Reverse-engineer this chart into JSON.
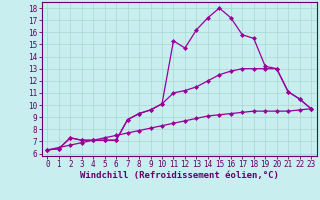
{
  "xlabel": "Windchill (Refroidissement éolien,°C)",
  "bg_color": "#c8eef0",
  "line_color": "#990099",
  "xlim": [
    -0.5,
    23.5
  ],
  "ylim": [
    5.8,
    18.5
  ],
  "xticks": [
    0,
    1,
    2,
    3,
    4,
    5,
    6,
    7,
    8,
    9,
    10,
    11,
    12,
    13,
    14,
    15,
    16,
    17,
    18,
    19,
    20,
    21,
    22,
    23
  ],
  "yticks": [
    6,
    7,
    8,
    9,
    10,
    11,
    12,
    13,
    14,
    15,
    16,
    17,
    18
  ],
  "line1_x": [
    0,
    1,
    2,
    3,
    4,
    5,
    6,
    7,
    8,
    9,
    10,
    11,
    12,
    13,
    14,
    15,
    16,
    17,
    18,
    19,
    20,
    21,
    22,
    23
  ],
  "line1_y": [
    6.3,
    6.4,
    7.3,
    7.1,
    7.1,
    7.1,
    7.1,
    8.8,
    9.3,
    9.6,
    10.1,
    15.3,
    14.7,
    16.2,
    17.2,
    18.0,
    17.2,
    15.8,
    15.5,
    13.2,
    13.0,
    11.1,
    10.5,
    9.7
  ],
  "line2_x": [
    0,
    1,
    2,
    3,
    4,
    5,
    6,
    7,
    8,
    9,
    10,
    11,
    12,
    13,
    14,
    15,
    16,
    17,
    18,
    19,
    20,
    21,
    22,
    23
  ],
  "line2_y": [
    6.3,
    6.4,
    7.3,
    7.1,
    7.1,
    7.1,
    7.1,
    8.8,
    9.3,
    9.6,
    10.1,
    11.0,
    11.2,
    11.5,
    12.0,
    12.5,
    12.8,
    13.0,
    13.0,
    13.0,
    13.0,
    11.1,
    10.5,
    9.7
  ],
  "line3_x": [
    0,
    1,
    2,
    3,
    4,
    5,
    6,
    7,
    8,
    9,
    10,
    11,
    12,
    13,
    14,
    15,
    16,
    17,
    18,
    19,
    20,
    21,
    22,
    23
  ],
  "line3_y": [
    6.3,
    6.5,
    6.7,
    6.9,
    7.1,
    7.3,
    7.5,
    7.7,
    7.9,
    8.1,
    8.3,
    8.5,
    8.7,
    8.9,
    9.1,
    9.2,
    9.3,
    9.4,
    9.5,
    9.5,
    9.5,
    9.5,
    9.6,
    9.7
  ],
  "marker": "D",
  "markersize": 2,
  "linewidth": 0.9,
  "xlabel_fontsize": 6.5,
  "tick_fontsize": 5.5,
  "grid_color": "#a8d8cc",
  "spine_color": "#660066",
  "tick_color": "#660066"
}
